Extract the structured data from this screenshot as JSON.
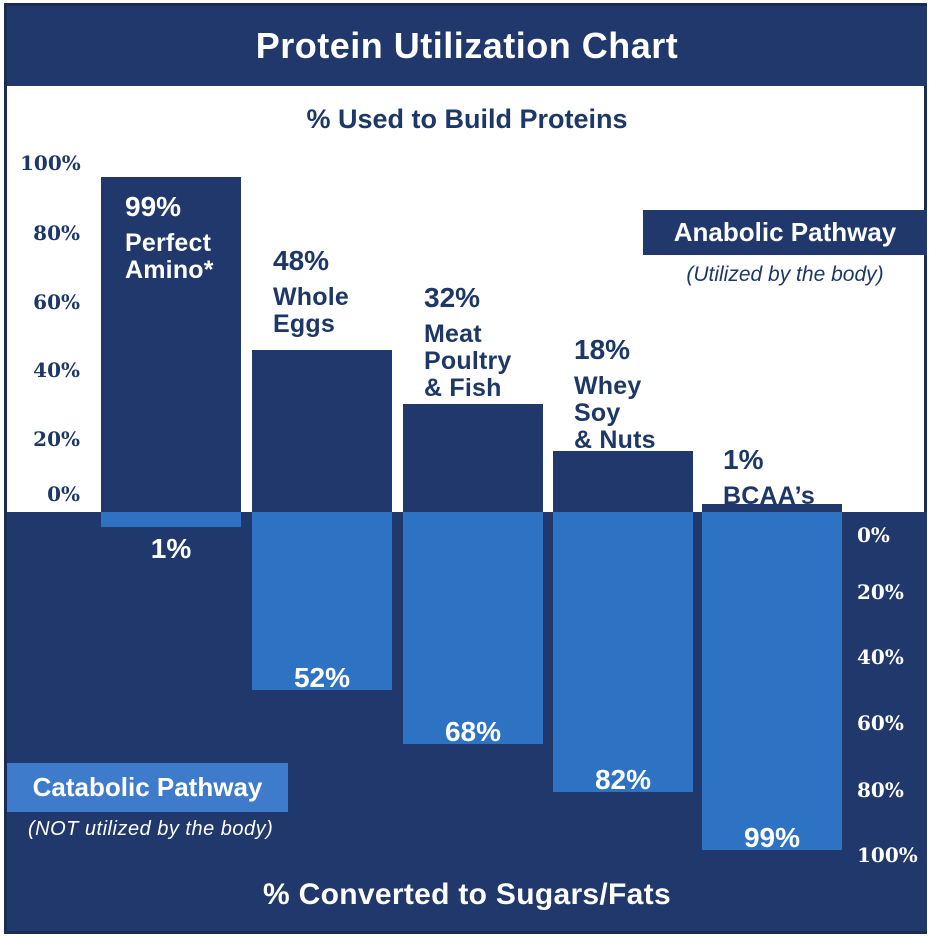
{
  "title": "Protein Utilization Chart",
  "top_axis_title": "% Used to Build Proteins",
  "bottom_axis_title": "% Converted to Sugars/Fats",
  "anabolic": {
    "label": "Anabolic Pathway",
    "note": "(Utilized by the body)"
  },
  "catabolic": {
    "label": "Catabolic Pathway",
    "note": "(NOT utilized by the body)"
  },
  "left_axis": {
    "ticks": [
      "100%",
      "80%",
      "60%",
      "40%",
      "20%",
      "0%"
    ]
  },
  "right_axis": {
    "ticks": [
      "0%",
      "20%",
      "40%",
      "60%",
      "80%",
      "100%"
    ]
  },
  "colors": {
    "navy": "#20386b",
    "light_blue": "#2d72c3",
    "badge_blue": "#3e7ccb",
    "frame": "#1a2c52",
    "white": "#ffffff"
  },
  "chart_data": {
    "type": "bar",
    "orientation": "diverging-vertical",
    "title": "Protein Utilization Chart",
    "top_axis_label": "% Used to Build Proteins",
    "bottom_axis_label": "% Converted to Sugars/Fats",
    "categories": [
      "Perfect Amino*",
      "Whole Eggs",
      "Meat Poultry & Fish",
      "Whey Soy & Nuts",
      "BCAA’s"
    ],
    "categories_lines": [
      "Perfect\nAmino*",
      "Whole\nEggs",
      "Meat\nPoultry\n& Fish",
      "Whey\nSoy\n& Nuts",
      "BCAA’s"
    ],
    "series": [
      {
        "name": "% Used to Build Proteins (Anabolic Pathway)",
        "values": [
          99,
          48,
          32,
          18,
          1
        ],
        "labels": [
          "99%",
          "48%",
          "32%",
          "18%",
          "1%"
        ]
      },
      {
        "name": "% Converted to Sugars/Fats (Catabolic Pathway)",
        "values": [
          1,
          52,
          68,
          82,
          99
        ],
        "labels": [
          "1%",
          "52%",
          "68%",
          "82%",
          "99%"
        ]
      }
    ],
    "ylim_up": [
      0,
      100
    ],
    "ylim_down": [
      0,
      100
    ],
    "legend_position": "none",
    "grid": false
  }
}
